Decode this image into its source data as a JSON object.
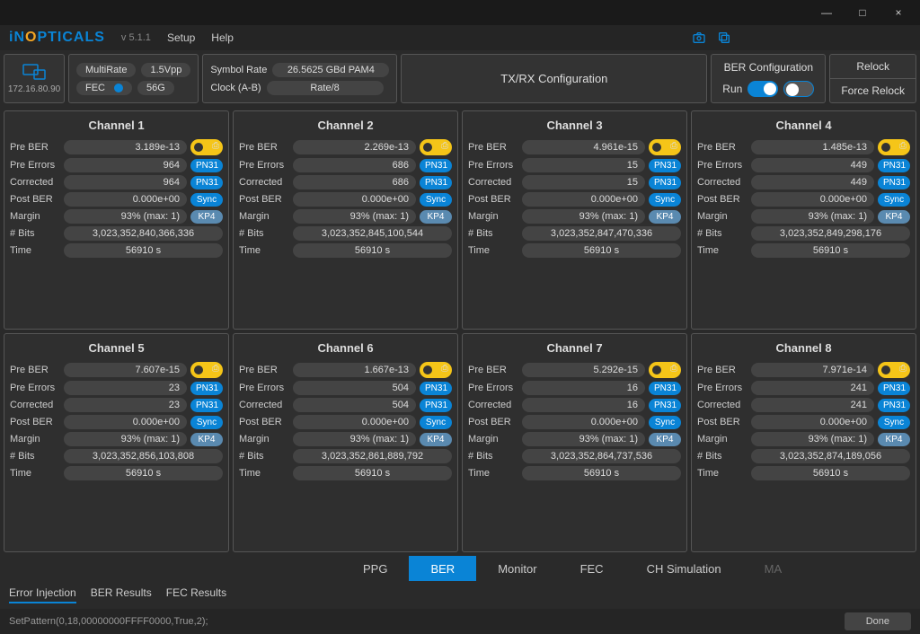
{
  "window": {
    "minimize": "—",
    "maximize": "□",
    "close": "×"
  },
  "header": {
    "logo_i": "iN",
    "logo_o": "O",
    "logo_rest": "PTICALS",
    "version": "v 5.1.1",
    "menu_setup": "Setup",
    "menu_help": "Help"
  },
  "device": {
    "ip": "172.16.80.90"
  },
  "config1": {
    "multirate": "MultiRate",
    "vpp": "1.5Vpp",
    "fec": "FEC",
    "rate": "56G"
  },
  "config2": {
    "symbol_rate_label": "Symbol Rate",
    "symbol_rate_val": "26.5625 GBd PAM4",
    "clock_label": "Clock (A-B)",
    "clock_val": "Rate/8"
  },
  "txrx": "TX/RX Configuration",
  "ber_cfg": {
    "title": "BER Configuration",
    "run": "Run"
  },
  "relock": {
    "relock": "Relock",
    "force": "Force Relock"
  },
  "labels": {
    "pre_ber": "Pre BER",
    "pre_errors": "Pre Errors",
    "corrected": "Corrected",
    "post_ber": "Post BER",
    "margin": "Margin",
    "bits": "# Bits",
    "time": "Time"
  },
  "badges": {
    "pn31": "PN31",
    "sync": "Sync",
    "kp4": "KP4"
  },
  "channels": [
    {
      "title": "Channel 1",
      "pre_ber": "3.189e-13",
      "pre_errors": "964",
      "corrected": "964",
      "post_ber": "0.000e+00",
      "margin": "93% (max: 1)",
      "bits": "3,023,352,840,366,336",
      "time": "56910 s"
    },
    {
      "title": "Channel 2",
      "pre_ber": "2.269e-13",
      "pre_errors": "686",
      "corrected": "686",
      "post_ber": "0.000e+00",
      "margin": "93% (max: 1)",
      "bits": "3,023,352,845,100,544",
      "time": "56910 s"
    },
    {
      "title": "Channel 3",
      "pre_ber": "4.961e-15",
      "pre_errors": "15",
      "corrected": "15",
      "post_ber": "0.000e+00",
      "margin": "93% (max: 1)",
      "bits": "3,023,352,847,470,336",
      "time": "56910 s"
    },
    {
      "title": "Channel 4",
      "pre_ber": "1.485e-13",
      "pre_errors": "449",
      "corrected": "449",
      "post_ber": "0.000e+00",
      "margin": "93% (max: 1)",
      "bits": "3,023,352,849,298,176",
      "time": "56910 s"
    },
    {
      "title": "Channel 5",
      "pre_ber": "7.607e-15",
      "pre_errors": "23",
      "corrected": "23",
      "post_ber": "0.000e+00",
      "margin": "93% (max: 1)",
      "bits": "3,023,352,856,103,808",
      "time": "56910 s"
    },
    {
      "title": "Channel 6",
      "pre_ber": "1.667e-13",
      "pre_errors": "504",
      "corrected": "504",
      "post_ber": "0.000e+00",
      "margin": "93% (max: 1)",
      "bits": "3,023,352,861,889,792",
      "time": "56910 s"
    },
    {
      "title": "Channel 7",
      "pre_ber": "5.292e-15",
      "pre_errors": "16",
      "corrected": "16",
      "post_ber": "0.000e+00",
      "margin": "93% (max: 1)",
      "bits": "3,023,352,864,737,536",
      "time": "56910 s"
    },
    {
      "title": "Channel 8",
      "pre_ber": "7.971e-14",
      "pre_errors": "241",
      "corrected": "241",
      "post_ber": "0.000e+00",
      "margin": "93% (max: 1)",
      "bits": "3,023,352,874,189,056",
      "time": "56910 s"
    }
  ],
  "tabs": {
    "ppg": "PPG",
    "ber": "BER",
    "monitor": "Monitor",
    "fec": "FEC",
    "chsim": "CH Simulation",
    "ma": "MA"
  },
  "subtabs": {
    "error_inj": "Error Injection",
    "ber_res": "BER Results",
    "fec_res": "FEC Results"
  },
  "footer": {
    "cmd": "SetPattern(0,18,00000000FFFF0000,True,2);",
    "done": "Done"
  },
  "colors": {
    "accent": "#0a84d6",
    "yellow": "#f5c518",
    "bg": "#2a2a2a",
    "panel": "#333",
    "border": "#555"
  }
}
